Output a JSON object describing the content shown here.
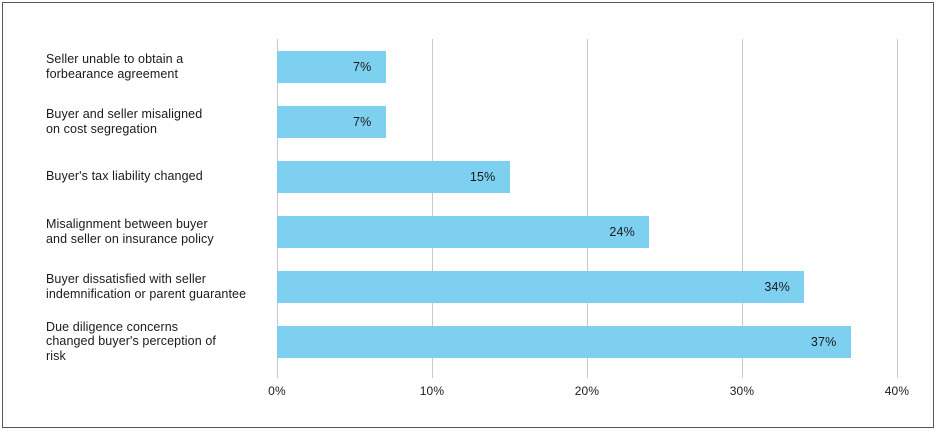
{
  "frame": {
    "border_color": "#54565A",
    "background": "#FFFFFF"
  },
  "chart_data": {
    "type": "bar",
    "orientation": "horizontal",
    "title": "",
    "xlabel": "",
    "ylabel": "",
    "categories": [
      "Seller unable to obtain a forbearance agreement",
      "Buyer and seller misaligned on cost segregation",
      "Buyer's tax liability changed",
      "Misalignment between buyer and seller on insurance policy",
      "Buyer dissatisfied with seller indemnification or parent guarantee",
      "Due diligence concerns changed buyer's perception of risk"
    ],
    "label_display": [
      "Seller unable to obtain a\nforbearance agreement",
      "Buyer and seller misaligned\non cost segregation",
      "Buyer's tax liability changed",
      "Misalignment between buyer\nand seller on insurance policy",
      "Buyer dissatisfied with seller\nindemnification or parent guarantee",
      "Due diligence concerns\nchanged buyer's perception of\nrisk"
    ],
    "values": [
      7,
      7,
      15,
      24,
      34,
      37
    ],
    "value_labels": [
      "7%",
      "7%",
      "15%",
      "24%",
      "34%",
      "37%"
    ],
    "xticks": [
      "0%",
      "10%",
      "20%",
      "30%",
      "40%"
    ],
    "xtick_values": [
      0,
      10,
      20,
      30,
      40
    ],
    "xlim": [
      0,
      40
    ],
    "grid": true,
    "legend": "none",
    "bar_color": "#7ED0F0",
    "grid_color": "#C6C8CA",
    "text_color": "#1A1A1A"
  }
}
